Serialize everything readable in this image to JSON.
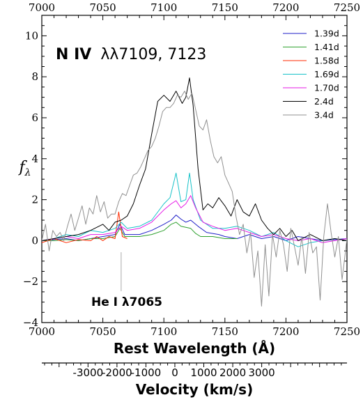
{
  "chart_data": {
    "type": "line",
    "xlabel": "Rest Wavelength (Å)",
    "ylabel": "f",
    "ylabel_sub": "λ",
    "xlim": [
      7000,
      7250
    ],
    "ylim": [
      -4,
      11
    ],
    "x_ticks": [
      "7000",
      "7050",
      "7100",
      "7150",
      "7200",
      "7250"
    ],
    "y_ticks": [
      "−4",
      "−2",
      "0",
      "2",
      "4",
      "6",
      "8",
      "10"
    ],
    "title_annotation": {
      "ion": "N IV",
      "lines": "λλ7109, 7123"
    },
    "marker_annotation": {
      "text": "He I λ7065",
      "x": 7065
    },
    "velocity_axis": {
      "label": "Velocity (km/s)",
      "center_wavelength": 7109,
      "ticks": [
        -3000,
        -2000,
        -1000,
        0,
        1000,
        2000,
        3000
      ],
      "tick_labels": [
        "-3000",
        "-2000",
        "-1000",
        "0",
        "1000",
        "2000",
        "3000"
      ]
    },
    "legend_position": "top-right",
    "series": [
      {
        "name": "1.39d",
        "color": "#1f1fc8",
        "points": [
          [
            7000,
            0.0
          ],
          [
            7010,
            0.05
          ],
          [
            7020,
            0.1
          ],
          [
            7030,
            0.0
          ],
          [
            7040,
            0.1
          ],
          [
            7050,
            0.2
          ],
          [
            7060,
            0.3
          ],
          [
            7064,
            0.8
          ],
          [
            7068,
            0.3
          ],
          [
            7080,
            0.3
          ],
          [
            7090,
            0.5
          ],
          [
            7100,
            0.8
          ],
          [
            7106,
            1.0
          ],
          [
            7110,
            1.25
          ],
          [
            7114,
            1.05
          ],
          [
            7118,
            0.9
          ],
          [
            7122,
            1.0
          ],
          [
            7128,
            0.7
          ],
          [
            7135,
            0.4
          ],
          [
            7145,
            0.3
          ],
          [
            7150,
            0.2
          ],
          [
            7160,
            0.1
          ],
          [
            7170,
            0.3
          ],
          [
            7180,
            0.1
          ],
          [
            7190,
            0.2
          ],
          [
            7200,
            0.0
          ],
          [
            7210,
            0.2
          ],
          [
            7220,
            0.1
          ],
          [
            7230,
            0.0
          ],
          [
            7240,
            0.05
          ],
          [
            7250,
            0.1
          ]
        ]
      },
      {
        "name": "1.41d",
        "color": "#2ca02c",
        "points": [
          [
            7000,
            0.0
          ],
          [
            7010,
            0.0
          ],
          [
            7020,
            0.05
          ],
          [
            7030,
            0.0
          ],
          [
            7040,
            0.1
          ],
          [
            7050,
            0.1
          ],
          [
            7060,
            0.2
          ],
          [
            7064,
            0.6
          ],
          [
            7068,
            0.2
          ],
          [
            7080,
            0.2
          ],
          [
            7090,
            0.3
          ],
          [
            7100,
            0.5
          ],
          [
            7106,
            0.8
          ],
          [
            7110,
            0.9
          ],
          [
            7114,
            0.7
          ],
          [
            7118,
            0.65
          ],
          [
            7122,
            0.6
          ],
          [
            7126,
            0.35
          ],
          [
            7130,
            0.2
          ],
          [
            7140,
            0.2
          ],
          [
            7150,
            0.1
          ],
          [
            7160,
            0.1
          ]
        ]
      },
      {
        "name": "1.58d",
        "color": "#ff2a00",
        "points": [
          [
            7000,
            -0.1
          ],
          [
            7010,
            0.1
          ],
          [
            7020,
            -0.1
          ],
          [
            7030,
            0.05
          ],
          [
            7040,
            0.0
          ],
          [
            7045,
            0.2
          ],
          [
            7050,
            0.0
          ],
          [
            7055,
            0.2
          ],
          [
            7060,
            0.1
          ],
          [
            7063,
            1.4
          ],
          [
            7066,
            0.2
          ],
          [
            7070,
            0.1
          ]
        ]
      },
      {
        "name": "1.69d",
        "color": "#17c2c8",
        "points": [
          [
            7000,
            0.0
          ],
          [
            7010,
            0.1
          ],
          [
            7020,
            0.3
          ],
          [
            7030,
            0.2
          ],
          [
            7040,
            0.5
          ],
          [
            7050,
            0.4
          ],
          [
            7060,
            0.6
          ],
          [
            7065,
            0.9
          ],
          [
            7070,
            0.6
          ],
          [
            7080,
            0.7
          ],
          [
            7090,
            1.0
          ],
          [
            7100,
            1.8
          ],
          [
            7105,
            2.1
          ],
          [
            7110,
            3.3
          ],
          [
            7114,
            1.9
          ],
          [
            7118,
            2.0
          ],
          [
            7121,
            3.3
          ],
          [
            7124,
            2.0
          ],
          [
            7130,
            1.0
          ],
          [
            7140,
            0.6
          ],
          [
            7150,
            0.6
          ],
          [
            7160,
            0.7
          ],
          [
            7170,
            0.5
          ],
          [
            7180,
            0.2
          ],
          [
            7190,
            0.4
          ],
          [
            7200,
            0.0
          ],
          [
            7210,
            -0.3
          ],
          [
            7220,
            -0.1
          ],
          [
            7230,
            0.0
          ],
          [
            7240,
            0.1
          ],
          [
            7250,
            0.0
          ]
        ]
      },
      {
        "name": "1.70d",
        "color": "#e619e6",
        "points": [
          [
            7000,
            0.0
          ],
          [
            7010,
            0.1
          ],
          [
            7020,
            0.2
          ],
          [
            7030,
            0.1
          ],
          [
            7040,
            0.3
          ],
          [
            7050,
            0.3
          ],
          [
            7060,
            0.4
          ],
          [
            7065,
            0.7
          ],
          [
            7070,
            0.5
          ],
          [
            7080,
            0.6
          ],
          [
            7090,
            0.9
          ],
          [
            7100,
            1.5
          ],
          [
            7106,
            1.8
          ],
          [
            7110,
            1.95
          ],
          [
            7114,
            1.6
          ],
          [
            7118,
            1.8
          ],
          [
            7122,
            2.2
          ],
          [
            7126,
            1.6
          ],
          [
            7132,
            0.9
          ],
          [
            7140,
            0.7
          ],
          [
            7150,
            0.5
          ],
          [
            7160,
            0.6
          ],
          [
            7170,
            0.4
          ],
          [
            7180,
            0.2
          ],
          [
            7190,
            0.3
          ],
          [
            7200,
            0.1
          ],
          [
            7210,
            0.0
          ],
          [
            7220,
            0.1
          ],
          [
            7230,
            -0.1
          ],
          [
            7240,
            0.0
          ],
          [
            7250,
            0.1
          ]
        ]
      },
      {
        "name": "2.4d",
        "color": "#000000",
        "points": [
          [
            7000,
            0.0
          ],
          [
            7010,
            0.1
          ],
          [
            7020,
            0.2
          ],
          [
            7030,
            0.3
          ],
          [
            7040,
            0.5
          ],
          [
            7050,
            0.8
          ],
          [
            7055,
            0.5
          ],
          [
            7060,
            0.9
          ],
          [
            7065,
            1.0
          ],
          [
            7070,
            1.2
          ],
          [
            7075,
            1.8
          ],
          [
            7080,
            2.7
          ],
          [
            7085,
            3.5
          ],
          [
            7090,
            5.2
          ],
          [
            7095,
            6.8
          ],
          [
            7100,
            7.1
          ],
          [
            7105,
            6.8
          ],
          [
            7110,
            7.3
          ],
          [
            7115,
            6.7
          ],
          [
            7118,
            7.0
          ],
          [
            7121,
            7.95
          ],
          [
            7124,
            6.6
          ],
          [
            7128,
            3.5
          ],
          [
            7132,
            1.5
          ],
          [
            7136,
            1.8
          ],
          [
            7140,
            1.6
          ],
          [
            7145,
            2.1
          ],
          [
            7150,
            1.7
          ],
          [
            7155,
            1.2
          ],
          [
            7160,
            2.0
          ],
          [
            7165,
            1.4
          ],
          [
            7170,
            1.2
          ],
          [
            7175,
            1.8
          ],
          [
            7180,
            1.0
          ],
          [
            7185,
            0.6
          ],
          [
            7190,
            0.3
          ],
          [
            7195,
            0.6
          ],
          [
            7200,
            0.2
          ],
          [
            7205,
            0.5
          ],
          [
            7210,
            0.0
          ],
          [
            7220,
            0.3
          ],
          [
            7230,
            0.0
          ],
          [
            7240,
            0.1
          ],
          [
            7250,
            0.0
          ]
        ]
      },
      {
        "name": "3.4d",
        "color": "#909090",
        "points": [
          [
            7000,
            0.0
          ],
          [
            7003,
            0.8
          ],
          [
            7006,
            -0.5
          ],
          [
            7009,
            0.5
          ],
          [
            7012,
            0.2
          ],
          [
            7015,
            0.4
          ],
          [
            7018,
            0.0
          ],
          [
            7021,
            0.7
          ],
          [
            7024,
            1.3
          ],
          [
            7027,
            0.5
          ],
          [
            7030,
            1.1
          ],
          [
            7033,
            1.7
          ],
          [
            7036,
            0.8
          ],
          [
            7039,
            1.6
          ],
          [
            7042,
            1.3
          ],
          [
            7045,
            2.2
          ],
          [
            7048,
            1.4
          ],
          [
            7051,
            1.9
          ],
          [
            7054,
            1.1
          ],
          [
            7057,
            1.3
          ],
          [
            7060,
            1.3
          ],
          [
            7063,
            1.9
          ],
          [
            7066,
            2.3
          ],
          [
            7069,
            2.2
          ],
          [
            7072,
            2.7
          ],
          [
            7075,
            3.2
          ],
          [
            7078,
            3.3
          ],
          [
            7081,
            3.6
          ],
          [
            7084,
            4.0
          ],
          [
            7087,
            4.4
          ],
          [
            7090,
            4.6
          ],
          [
            7093,
            5.0
          ],
          [
            7096,
            5.6
          ],
          [
            7099,
            6.3
          ],
          [
            7102,
            6.5
          ],
          [
            7105,
            6.5
          ],
          [
            7108,
            6.7
          ],
          [
            7111,
            7.1
          ],
          [
            7114,
            7.0
          ],
          [
            7117,
            7.3
          ],
          [
            7120,
            6.9
          ],
          [
            7123,
            7.2
          ],
          [
            7126,
            6.4
          ],
          [
            7129,
            5.6
          ],
          [
            7132,
            5.4
          ],
          [
            7135,
            5.9
          ],
          [
            7138,
            4.9
          ],
          [
            7141,
            4.1
          ],
          [
            7144,
            3.8
          ],
          [
            7147,
            4.1
          ],
          [
            7150,
            3.2
          ],
          [
            7153,
            2.8
          ],
          [
            7156,
            2.4
          ],
          [
            7159,
            1.2
          ],
          [
            7162,
            0.3
          ],
          [
            7165,
            0.8
          ],
          [
            7168,
            -0.6
          ],
          [
            7171,
            0.4
          ],
          [
            7174,
            -1.8
          ],
          [
            7177,
            -0.5
          ],
          [
            7180,
            -3.2
          ],
          [
            7183,
            -0.2
          ],
          [
            7186,
            -2.7
          ],
          [
            7189,
            0.3
          ],
          [
            7192,
            -0.8
          ],
          [
            7195,
            0.5
          ],
          [
            7198,
            -0.2
          ],
          [
            7201,
            -1.5
          ],
          [
            7204,
            0.6
          ],
          [
            7207,
            -0.3
          ],
          [
            7210,
            -1.2
          ],
          [
            7213,
            0.2
          ],
          [
            7216,
            -1.6
          ],
          [
            7219,
            0.4
          ],
          [
            7222,
            -0.6
          ],
          [
            7225,
            -0.3
          ],
          [
            7228,
            -2.9
          ],
          [
            7231,
            0.2
          ],
          [
            7234,
            1.8
          ],
          [
            7237,
            0.4
          ],
          [
            7240,
            -0.8
          ],
          [
            7243,
            0.2
          ],
          [
            7246,
            -1.9
          ],
          [
            7250,
            0.1
          ]
        ]
      }
    ]
  }
}
